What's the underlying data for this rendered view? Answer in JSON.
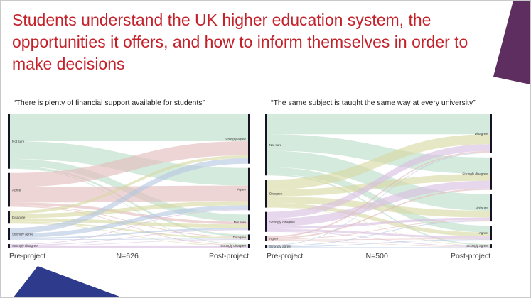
{
  "slide": {
    "title": "Students understand the UK higher education system, the opportunities it offers, and how to inform themselves in order to make decisions",
    "title_color": "#c4222b",
    "decor": {
      "top_right_color": "#5d2e5f",
      "bottom_left_color": "#2e3a8c"
    }
  },
  "charts": [
    {
      "quote": "“There is plenty of financial support available for students”",
      "n_label": "N=626",
      "left_label": "Pre-project",
      "right_label": "Post-project"
    },
    {
      "quote": "“The same subject is taught the same way at every university”",
      "n_label": "N=500",
      "left_label": "Pre-project",
      "right_label": "Post-project"
    }
  ],
  "category_colors": {
    "Not sure": "#b9ddc6",
    "Agree": "#e3bbbc",
    "Disagree": "#d6d9a0",
    "Strongly agree": "#b4c6e0",
    "Strongly disagree": "#d8bee0"
  },
  "node_bar_color": "#141426",
  "chart_data": [
    {
      "type": "sankey",
      "title": "“There is plenty of financial support available for students”",
      "n": 626,
      "columns": [
        "Pre-project",
        "Post-project"
      ],
      "pre_nodes": [
        "Not sure",
        "Agree",
        "Disagree",
        "Strongly agree",
        "Strongly disagree"
      ],
      "post_nodes": [
        "Strongly agree",
        "Agree",
        "Not sure",
        "Disagree",
        "Strongly disagree"
      ],
      "links": [
        {
          "source": "Not sure",
          "target": "Strongly agree",
          "value": 145
        },
        {
          "source": "Not sure",
          "target": "Agree",
          "value": 95
        },
        {
          "source": "Not sure",
          "target": "Not sure",
          "value": 38
        },
        {
          "source": "Not sure",
          "target": "Disagree",
          "value": 11
        },
        {
          "source": "Not sure",
          "target": "Strongly disagree",
          "value": 4
        },
        {
          "source": "Agree",
          "target": "Strongly agree",
          "value": 76
        },
        {
          "source": "Agree",
          "target": "Agree",
          "value": 83
        },
        {
          "source": "Agree",
          "target": "Not sure",
          "value": 15
        },
        {
          "source": "Agree",
          "target": "Disagree",
          "value": 4
        },
        {
          "source": "Agree",
          "target": "Strongly disagree",
          "value": 4
        },
        {
          "source": "Disagree",
          "target": "Strongly agree",
          "value": 15
        },
        {
          "source": "Disagree",
          "target": "Agree",
          "value": 23
        },
        {
          "source": "Disagree",
          "target": "Not sure",
          "value": 19
        },
        {
          "source": "Disagree",
          "target": "Disagree",
          "value": 8
        },
        {
          "source": "Disagree",
          "target": "Strongly disagree",
          "value": 3
        },
        {
          "source": "Strongly agree",
          "target": "Strongly agree",
          "value": 30
        },
        {
          "source": "Strongly agree",
          "target": "Agree",
          "value": 23
        },
        {
          "source": "Strongly agree",
          "target": "Not sure",
          "value": 8
        },
        {
          "source": "Strongly agree",
          "target": "Disagree",
          "value": 3
        },
        {
          "source": "Strongly disagree",
          "target": "Agree",
          "value": 4
        },
        {
          "source": "Strongly disagree",
          "target": "Not sure",
          "value": 4
        },
        {
          "source": "Strongly disagree",
          "target": "Disagree",
          "value": 3
        },
        {
          "source": "Strongly disagree",
          "target": "Strongly disagree",
          "value": 8
        }
      ]
    },
    {
      "type": "sankey",
      "title": "“The same subject is taught the same way at every university”",
      "n": 500,
      "columns": [
        "Pre-project",
        "Post-project"
      ],
      "pre_nodes": [
        "Not sure",
        "Disagree",
        "Strongly disagree",
        "Agree",
        "Strongly agree"
      ],
      "post_nodes": [
        "Disagree",
        "Strongly disagree",
        "Not sure",
        "Agree",
        "Strongly agree"
      ],
      "links": [
        {
          "source": "Not sure",
          "target": "Disagree",
          "value": 86
        },
        {
          "source": "Not sure",
          "target": "Strongly disagree",
          "value": 71
        },
        {
          "source": "Not sure",
          "target": "Not sure",
          "value": 71
        },
        {
          "source": "Not sure",
          "target": "Agree",
          "value": 29
        },
        {
          "source": "Not sure",
          "target": "Strongly agree",
          "value": 6
        },
        {
          "source": "Disagree",
          "target": "Disagree",
          "value": 43
        },
        {
          "source": "Disagree",
          "target": "Strongly disagree",
          "value": 29
        },
        {
          "source": "Disagree",
          "target": "Not sure",
          "value": 29
        },
        {
          "source": "Disagree",
          "target": "Agree",
          "value": 17
        },
        {
          "source": "Disagree",
          "target": "Strongly agree",
          "value": 2
        },
        {
          "source": "Strongly disagree",
          "target": "Disagree",
          "value": 29
        },
        {
          "source": "Strongly disagree",
          "target": "Strongly disagree",
          "value": 34
        },
        {
          "source": "Strongly disagree",
          "target": "Not sure",
          "value": 11
        },
        {
          "source": "Strongly disagree",
          "target": "Agree",
          "value": 9
        },
        {
          "source": "Strongly disagree",
          "target": "Strongly agree",
          "value": 3
        },
        {
          "source": "Agree",
          "target": "Disagree",
          "value": 6
        },
        {
          "source": "Agree",
          "target": "Strongly disagree",
          "value": 6
        },
        {
          "source": "Agree",
          "target": "Not sure",
          "value": 3
        },
        {
          "source": "Agree",
          "target": "Agree",
          "value": 3
        },
        {
          "source": "Agree",
          "target": "Strongly agree",
          "value": 2
        },
        {
          "source": "Strongly agree",
          "target": "Disagree",
          "value": 3
        },
        {
          "source": "Strongly agree",
          "target": "Not sure",
          "value": 3
        },
        {
          "source": "Strongly agree",
          "target": "Agree",
          "value": 3
        },
        {
          "source": "Strongly agree",
          "target": "Strongly agree",
          "value": 2
        }
      ]
    }
  ]
}
